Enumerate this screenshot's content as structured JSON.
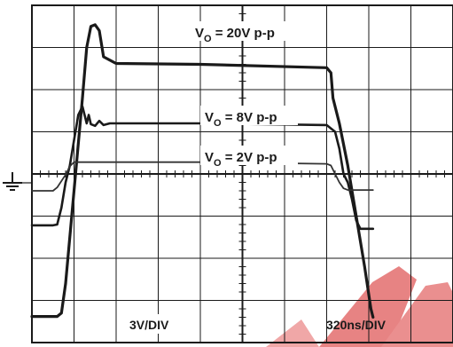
{
  "chart_data": {
    "type": "line",
    "title": "",
    "x_scale": "320ns/DIV",
    "y_scale": "3V/DIV",
    "x_divisions": 10,
    "y_divisions": 8,
    "x_unit": "ns",
    "y_unit": "V",
    "grid": true,
    "series": [
      {
        "label_main": "V",
        "label_sub": "O",
        "label_rest": " = 20V p-p",
        "color": "#1a1a1a",
        "points": [
          [
            0,
            -10.14
          ],
          [
            192,
            -10.14
          ],
          [
            224,
            -9.9
          ],
          [
            256,
            -7.8
          ],
          [
            320,
            -1.2
          ],
          [
            384,
            5.4
          ],
          [
            416,
            9.0
          ],
          [
            448,
            10.5
          ],
          [
            480,
            10.62
          ],
          [
            512,
            10.2
          ],
          [
            544,
            8.34
          ],
          [
            640,
            7.86
          ],
          [
            1280,
            7.8
          ],
          [
            2240,
            7.56
          ],
          [
            2272,
            7.2
          ],
          [
            2288,
            5.4
          ],
          [
            2336,
            3.6
          ],
          [
            2400,
            0.6
          ],
          [
            2464,
            -3.0
          ],
          [
            2528,
            -6.6
          ],
          [
            2576,
            -9.6
          ],
          [
            2592,
            -10.2
          ]
        ]
      },
      {
        "label_main": "V",
        "label_sub": "O",
        "label_rest": " = 8V p-p",
        "color": "#1a1a1a",
        "points": [
          [
            0,
            -3.66
          ],
          [
            160,
            -3.66
          ],
          [
            192,
            -3.6
          ],
          [
            224,
            -2.4
          ],
          [
            256,
            -0.6
          ],
          [
            288,
            0.6
          ],
          [
            320,
            2.4
          ],
          [
            352,
            4.2
          ],
          [
            384,
            4.8
          ],
          [
            416,
            3.6
          ],
          [
            432,
            4.2
          ],
          [
            448,
            3.54
          ],
          [
            480,
            3.42
          ],
          [
            512,
            3.78
          ],
          [
            544,
            3.48
          ],
          [
            592,
            3.6
          ],
          [
            1280,
            3.6
          ],
          [
            2240,
            3.48
          ],
          [
            2304,
            3.0
          ],
          [
            2336,
            1.8
          ],
          [
            2368,
            0.0
          ],
          [
            2400,
            -0.6
          ],
          [
            2432,
            -1.8
          ],
          [
            2464,
            -3.3
          ],
          [
            2496,
            -3.9
          ],
          [
            2592,
            -3.9
          ]
        ]
      },
      {
        "label_main": "V",
        "label_sub": "O",
        "label_rest": " = 2V p-p",
        "color": "#333333",
        "points": [
          [
            0,
            -1.2
          ],
          [
            160,
            -1.2
          ],
          [
            192,
            -0.96
          ],
          [
            256,
            -0.06
          ],
          [
            288,
            0.54
          ],
          [
            320,
            0.84
          ],
          [
            1280,
            0.84
          ],
          [
            2240,
            0.72
          ],
          [
            2272,
            0.6
          ],
          [
            2304,
            0.0
          ],
          [
            2336,
            -0.6
          ],
          [
            2368,
            -1.02
          ],
          [
            2400,
            -1.14
          ],
          [
            2592,
            -1.14
          ]
        ]
      }
    ]
  }
}
